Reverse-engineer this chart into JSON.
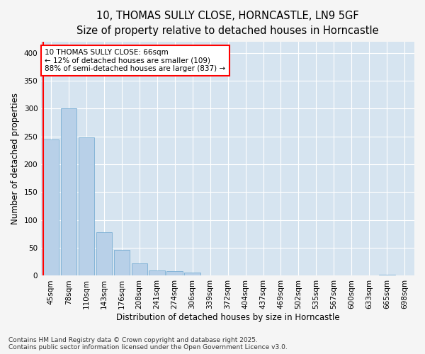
{
  "title_line1": "10, THOMAS SULLY CLOSE, HORNCASTLE, LN9 5GF",
  "title_line2": "Size of property relative to detached houses in Horncastle",
  "xlabel": "Distribution of detached houses by size in Horncastle",
  "ylabel": "Number of detached properties",
  "categories": [
    "45sqm",
    "78sqm",
    "110sqm",
    "143sqm",
    "176sqm",
    "208sqm",
    "241sqm",
    "274sqm",
    "306sqm",
    "339sqm",
    "372sqm",
    "404sqm",
    "437sqm",
    "469sqm",
    "502sqm",
    "535sqm",
    "567sqm",
    "600sqm",
    "633sqm",
    "665sqm",
    "698sqm"
  ],
  "values": [
    245,
    300,
    248,
    78,
    46,
    22,
    10,
    8,
    6,
    0,
    0,
    0,
    0,
    0,
    0,
    0,
    0,
    0,
    0,
    2,
    0
  ],
  "bar_color": "#b8d0e8",
  "bar_edge_color": "#7aafd4",
  "vline_color": "red",
  "vline_pos": 0,
  "annotation_title": "10 THOMAS SULLY CLOSE: 66sqm",
  "annotation_line1": "← 12% of detached houses are smaller (109)",
  "annotation_line2": "88% of semi-detached houses are larger (837) →",
  "annotation_box_color": "white",
  "annotation_box_edge": "red",
  "ylim": [
    0,
    420
  ],
  "yticks": [
    0,
    50,
    100,
    150,
    200,
    250,
    300,
    350,
    400
  ],
  "fig_bg_color": "#f5f5f5",
  "plot_bg_color": "#d6e4f0",
  "footer_line1": "Contains HM Land Registry data © Crown copyright and database right 2025.",
  "footer_line2": "Contains public sector information licensed under the Open Government Licence v3.0.",
  "title_fontsize": 10.5,
  "subtitle_fontsize": 9.5,
  "axis_label_fontsize": 8.5,
  "tick_fontsize": 7.5,
  "annotation_fontsize": 7.5,
  "footer_fontsize": 6.5
}
